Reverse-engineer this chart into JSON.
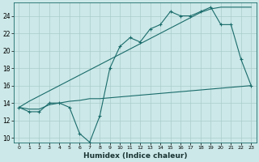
{
  "title": "",
  "xlabel": "Humidex (Indice chaleur)",
  "bg_color": "#cce8e8",
  "grid_color": "#aacccc",
  "line_color": "#1a6b6b",
  "xlim": [
    -0.5,
    23.5
  ],
  "ylim": [
    9.5,
    25.5
  ],
  "xticks": [
    0,
    1,
    2,
    3,
    4,
    5,
    6,
    7,
    8,
    9,
    10,
    11,
    12,
    13,
    14,
    15,
    16,
    17,
    18,
    19,
    20,
    21,
    22,
    23
  ],
  "yticks": [
    10,
    12,
    14,
    16,
    18,
    20,
    22,
    24
  ],
  "line1_y": [
    13.5,
    13.0,
    13.0,
    14.0,
    14.0,
    13.5,
    10.5,
    9.5,
    12.5,
    18.0,
    20.5,
    21.5,
    21.0,
    22.5,
    23.0,
    24.5,
    24.0,
    24.0,
    24.5,
    25.0,
    23.0,
    23.0,
    19.0,
    16.0
  ],
  "line2_y": [
    13.5,
    14.2,
    14.8,
    15.4,
    16.0,
    16.6,
    17.2,
    17.8,
    18.4,
    19.0,
    19.6,
    20.2,
    20.8,
    21.4,
    22.0,
    22.6,
    23.2,
    23.8,
    24.4,
    24.8,
    25.0,
    25.0,
    25.0,
    25.0
  ],
  "line3_y": [
    13.5,
    13.3,
    13.3,
    13.8,
    14.0,
    14.2,
    14.3,
    14.5,
    14.5,
    14.6,
    14.7,
    14.8,
    14.9,
    15.0,
    15.1,
    15.2,
    15.3,
    15.4,
    15.5,
    15.6,
    15.7,
    15.8,
    15.9,
    16.0
  ]
}
